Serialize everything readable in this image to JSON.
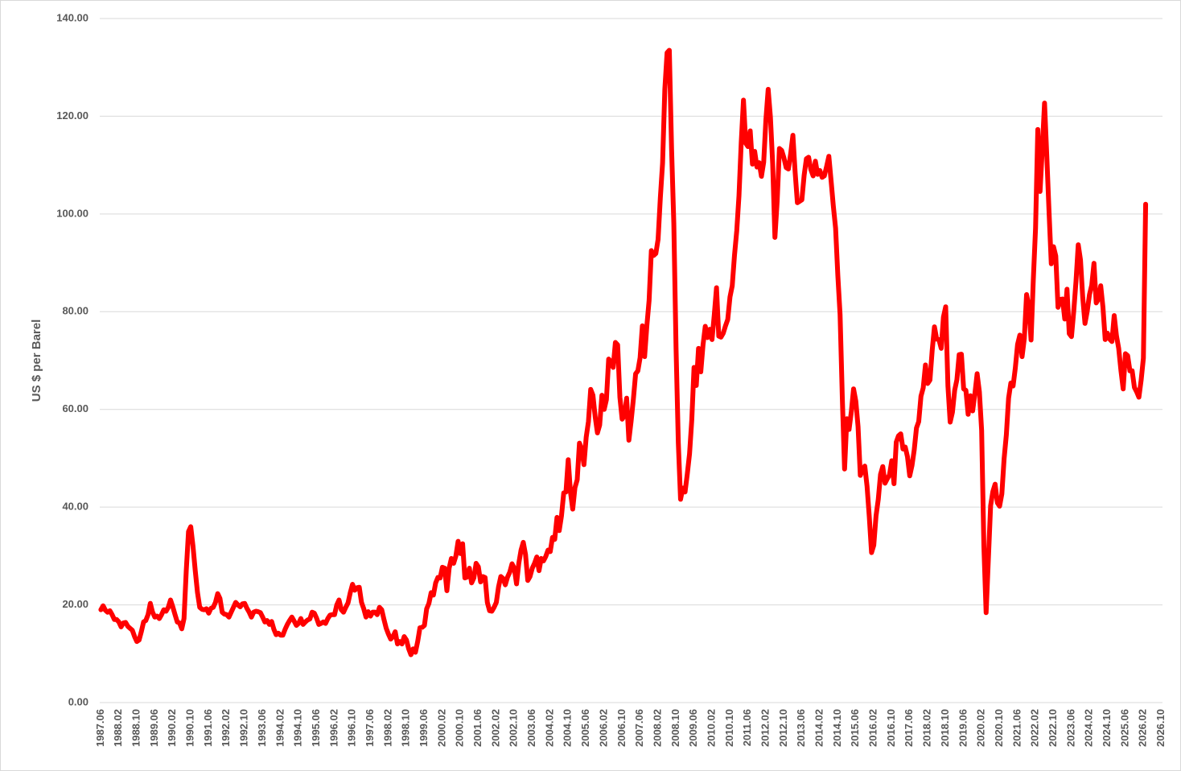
{
  "chart_data": {
    "type": "line",
    "y_label": "US $ per Barel",
    "categories": [
      "1987.06",
      null,
      null,
      null,
      null,
      null,
      null,
      null,
      "1988.02",
      null,
      null,
      null,
      null,
      null,
      null,
      null,
      "1988.10",
      null,
      null,
      null,
      null,
      null,
      null,
      null,
      "1989.06",
      null,
      null,
      null,
      null,
      null,
      null,
      null,
      "1990.02",
      null,
      null,
      null,
      null,
      null,
      null,
      null,
      "1990.10",
      null,
      null,
      null,
      null,
      null,
      null,
      null,
      "1991.06",
      null,
      null,
      null,
      null,
      null,
      null,
      null,
      "1992.02",
      null,
      null,
      null,
      null,
      null,
      null,
      null,
      "1992.10",
      null,
      null,
      null,
      null,
      null,
      null,
      null,
      "1993.06",
      null,
      null,
      null,
      null,
      null,
      null,
      null,
      "1994.02",
      null,
      null,
      null,
      null,
      null,
      null,
      null,
      "1994.10",
      null,
      null,
      null,
      null,
      null,
      null,
      null,
      "1995.06",
      null,
      null,
      null,
      null,
      null,
      null,
      null,
      "1996.02",
      null,
      null,
      null,
      null,
      null,
      null,
      null,
      "1996.10",
      null,
      null,
      null,
      null,
      null,
      null,
      null,
      "1997.06",
      null,
      null,
      null,
      null,
      null,
      null,
      null,
      "1998.02",
      null,
      null,
      null,
      null,
      null,
      null,
      null,
      "1998.10",
      null,
      null,
      null,
      null,
      null,
      null,
      null,
      "1999.06",
      null,
      null,
      null,
      null,
      null,
      null,
      null,
      "2000.02",
      null,
      null,
      null,
      null,
      null,
      null,
      null,
      "2000.10",
      null,
      null,
      null,
      null,
      null,
      null,
      null,
      "2001.06",
      null,
      null,
      null,
      null,
      null,
      null,
      null,
      "2002.02",
      null,
      null,
      null,
      null,
      null,
      null,
      null,
      "2002.10",
      null,
      null,
      null,
      null,
      null,
      null,
      null,
      "2003.06",
      null,
      null,
      null,
      null,
      null,
      null,
      null,
      "2004.02",
      null,
      null,
      null,
      null,
      null,
      null,
      null,
      "2004.10",
      null,
      null,
      null,
      null,
      null,
      null,
      null,
      "2005.06",
      null,
      null,
      null,
      null,
      null,
      null,
      null,
      "2006.02",
      null,
      null,
      null,
      null,
      null,
      null,
      null,
      "2006.10",
      null,
      null,
      null,
      null,
      null,
      null,
      null,
      "2007.06",
      null,
      null,
      null,
      null,
      null,
      null,
      null,
      "2008.02",
      null,
      null,
      null,
      null,
      null,
      null,
      null,
      "2008.10",
      null,
      null,
      null,
      null,
      null,
      null,
      null,
      "2009.06",
      null,
      null,
      null,
      null,
      null,
      null,
      null,
      "2010.02",
      null,
      null,
      null,
      null,
      null,
      null,
      null,
      "2010.10",
      null,
      null,
      null,
      null,
      null,
      null,
      null,
      "2011.06",
      null,
      null,
      null,
      null,
      null,
      null,
      null,
      "2012.02",
      null,
      null,
      null,
      null,
      null,
      null,
      null,
      "2012.10",
      null,
      null,
      null,
      null,
      null,
      null,
      null,
      "2013.06",
      null,
      null,
      null,
      null,
      null,
      null,
      null,
      "2014.02",
      null,
      null,
      null,
      null,
      null,
      null,
      null,
      "2014.10",
      null,
      null,
      null,
      null,
      null,
      null,
      null,
      "2015.06",
      null,
      null,
      null,
      null,
      null,
      null,
      null,
      "2016.02",
      null,
      null,
      null,
      null,
      null,
      null,
      null,
      "2016.10",
      null,
      null,
      null,
      null,
      null,
      null,
      null,
      "2017.06",
      null,
      null,
      null,
      null,
      null,
      null,
      null,
      "2018.02",
      null,
      null,
      null,
      null,
      null,
      null,
      null,
      "2018.10",
      null,
      null,
      null,
      null,
      null,
      null,
      null,
      "2019.06",
      null,
      null,
      null,
      null,
      null,
      null,
      null,
      "2020.02",
      null,
      null,
      null,
      null,
      null,
      null,
      null,
      "2020.10",
      null,
      null,
      null,
      null,
      null,
      null,
      null,
      "2021.06",
      null,
      null,
      null,
      null,
      null,
      null,
      null,
      "2022.02",
      null,
      null,
      null,
      null,
      null,
      null,
      null,
      "2022.10",
      null,
      null,
      null,
      null,
      null,
      null,
      null,
      "2023.06",
      null,
      null,
      null,
      null,
      null,
      null,
      null,
      "2024.02",
      null,
      null,
      null,
      null,
      null,
      null,
      null,
      "2024.10",
      null,
      null,
      null,
      null,
      null,
      null,
      null,
      "2025.06",
      null,
      null,
      null,
      null,
      null,
      null,
      null,
      "2026.02",
      null,
      null,
      null,
      null,
      null,
      null,
      null,
      "2026.10"
    ],
    "values": [
      19.0,
      19.8,
      18.9,
      18.5,
      18.8,
      18.0,
      17.0,
      17.0,
      16.5,
      15.5,
      16.3,
      16.4,
      15.6,
      15.2,
      14.8,
      13.5,
      12.5,
      12.8,
      14.5,
      16.5,
      16.8,
      18.0,
      20.3,
      18.5,
      17.5,
      17.7,
      17.2,
      18.0,
      19.0,
      18.7,
      19.5,
      21.0,
      19.6,
      18.0,
      16.5,
      16.3,
      15.1,
      17.2,
      27.0,
      35.0,
      36.0,
      32.0,
      27.0,
      22.5,
      19.5,
      19.1,
      19.0,
      19.2,
      18.3,
      19.3,
      19.5,
      20.5,
      22.3,
      21.3,
      18.5,
      18.1,
      18.0,
      17.5,
      18.5,
      19.5,
      20.5,
      20.0,
      19.6,
      20.2,
      20.3,
      19.3,
      18.5,
      17.5,
      18.5,
      18.7,
      18.6,
      18.4,
      17.5,
      16.5,
      16.8,
      16.0,
      16.6,
      15.0,
      13.9,
      14.2,
      13.8,
      13.8,
      15.0,
      16.0,
      16.8,
      17.5,
      16.7,
      15.8,
      16.2,
      17.2,
      16.0,
      16.5,
      16.9,
      17.1,
      18.5,
      18.3,
      17.3,
      16.0,
      16.2,
      16.5,
      16.2,
      17.2,
      17.9,
      18.0,
      18.0,
      20.0,
      21.0,
      19.0,
      18.5,
      19.5,
      20.4,
      22.5,
      24.2,
      23.0,
      23.5,
      23.6,
      20.5,
      19.2,
      17.5,
      18.6,
      17.7,
      18.5,
      18.5,
      18.0,
      19.5,
      19.0,
      17.0,
      15.2,
      14.0,
      13.0,
      13.5,
      14.5,
      12.0,
      12.5,
      12.0,
      13.5,
      12.8,
      11.0,
      9.8,
      11.0,
      10.3,
      12.5,
      15.3,
      15.4,
      15.8,
      19.2,
      20.3,
      22.5,
      22.0,
      24.5,
      25.6,
      25.5,
      27.7,
      27.5,
      22.9,
      27.5,
      29.5,
      28.5,
      30.0,
      33.0,
      30.5,
      32.5,
      25.5,
      25.7,
      27.5,
      24.5,
      25.5,
      28.5,
      27.8,
      24.7,
      25.8,
      25.6,
      20.5,
      18.8,
      18.7,
      19.5,
      20.5,
      23.7,
      25.8,
      25.4,
      24.1,
      25.7,
      26.7,
      28.4,
      27.5,
      24.3,
      28.5,
      31.2,
      32.8,
      30.3,
      25.0,
      25.8,
      27.5,
      28.5,
      29.8,
      27.0,
      29.5,
      29.0,
      29.9,
      31.2,
      30.9,
      33.8,
      33.4,
      37.9,
      35.2,
      38.2,
      42.9,
      43.1,
      49.7,
      43.1,
      39.6,
      44.0,
      45.6,
      53.1,
      51.9,
      48.7,
      54.3,
      57.5,
      64.1,
      62.9,
      58.5,
      55.2,
      56.8,
      62.9,
      60.0,
      62.0,
      70.3,
      69.8,
      68.6,
      73.7,
      73.2,
      62.5,
      58.0,
      58.7,
      62.3,
      53.7,
      57.6,
      62.1,
      67.3,
      67.9,
      70.6,
      77.1,
      70.8,
      77.1,
      82.3,
      92.5,
      91.5,
      91.9,
      94.8,
      103.3,
      110.4,
      125.5,
      133.0,
      133.5,
      113.4,
      98.1,
      72.4,
      53.2,
      41.6,
      43.9,
      43.1,
      46.8,
      50.9,
      57.9,
      68.6,
      64.9,
      72.5,
      67.7,
      73.2,
      77.0,
      74.7,
      76.4,
      74.3,
      79.3,
      84.9,
      75.0,
      74.8,
      75.6,
      77.1,
      78.4,
      83.0,
      85.3,
      91.5,
      96.5,
      103.7,
      114.6,
      123.3,
      114.5,
      113.8,
      117.0,
      110.2,
      112.8,
      109.6,
      110.5,
      107.7,
      110.6,
      119.4,
      125.5,
      119.8,
      110.3,
      95.2,
      102.6,
      113.4,
      113.0,
      111.5,
      109.5,
      109.2,
      112.3,
      116.1,
      108.5,
      102.3,
      102.6,
      102.9,
      107.9,
      111.3,
      111.6,
      109.1,
      107.8,
      110.8,
      108.1,
      108.9,
      107.5,
      107.8,
      109.7,
      111.8,
      106.8,
      101.6,
      97.1,
      87.4,
      79.4,
      62.3,
      47.8,
      58.1,
      55.9,
      59.5,
      64.2,
      61.7,
      56.5,
      46.5,
      47.6,
      48.4,
      44.3,
      38.0,
      30.7,
      32.2,
      38.2,
      41.6,
      46.7,
      48.3,
      44.9,
      45.8,
      46.6,
      49.5,
      44.8,
      53.3,
      54.6,
      55.0,
      51.9,
      52.3,
      50.3,
      46.4,
      48.5,
      51.7,
      56.2,
      57.5,
      62.7,
      64.4,
      69.1,
      65.3,
      66.0,
      72.1,
      76.9,
      74.4,
      74.3,
      72.5,
      78.9,
      81.0,
      64.8,
      57.4,
      59.4,
      63.9,
      66.1,
      71.2,
      71.3,
      64.2,
      63.9,
      59.0,
      62.8,
      59.7,
      63.2,
      67.3,
      63.6,
      55.7,
      32.0,
      18.4,
      29.4,
      40.3,
      43.2,
      44.7,
      40.9,
      40.2,
      42.7,
      49.9,
      54.8,
      62.3,
      65.4,
      64.8,
      68.5,
      73.3,
      75.2,
      70.8,
      74.5,
      83.5,
      81.1,
      74.2,
      86.5,
      97.1,
      117.3,
      104.6,
      113.3,
      122.7,
      111.9,
      100.5,
      89.8,
      93.3,
      91.4,
      80.9,
      82.5,
      82.6,
      78.5,
      84.6,
      75.5,
      74.9,
      80.1,
      86.2,
      93.7,
      90.6,
      82.9,
      77.6,
      80.1,
      83.5,
      85.4,
      89.9,
      81.8,
      82.6,
      85.3,
      80.9,
      74.3,
      75.6,
      74.4,
      73.9,
      79.2,
      75.1,
      72.5,
      68.0,
      64.2,
      71.4,
      71.0,
      67.9,
      67.9,
      64.5,
      63.6,
      62.5,
      66.0,
      70.5,
      102.0,
      null,
      null,
      null,
      null,
      null,
      null,
      null
    ],
    "color": "#ff0000",
    "ylim": [
      0,
      140
    ],
    "yticks": [
      {
        "value": 0,
        "label": "0.00"
      },
      {
        "value": 20,
        "label": "20.00"
      },
      {
        "value": 40,
        "label": "40.00"
      },
      {
        "value": 60,
        "label": "60.00"
      },
      {
        "value": 80,
        "label": "80.00"
      },
      {
        "value": 100,
        "label": "100.00"
      },
      {
        "value": 120,
        "label": "120.00"
      },
      {
        "value": 140,
        "label": "140.00"
      }
    ],
    "grid": true
  }
}
